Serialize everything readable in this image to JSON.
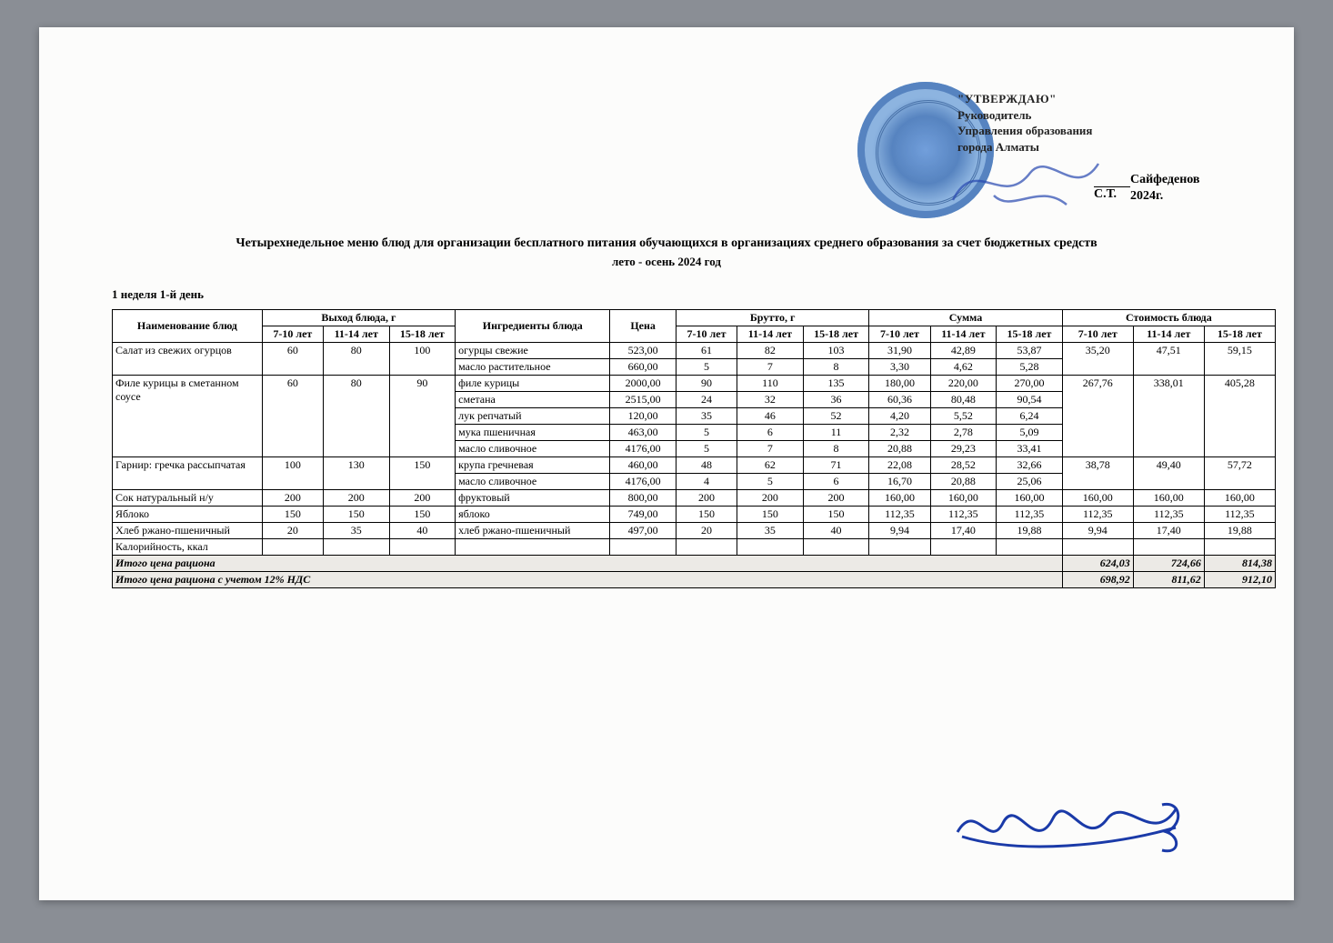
{
  "approval": {
    "line1": "\"УТВЕРЖДАЮ\"",
    "line2": "Руководитель",
    "line3": "Управления образования",
    "line4": "города Алматы",
    "signer": "Сайфеденов С.Т.",
    "year": "2024г."
  },
  "title": "Четырехнедельное меню блюд для организации бесплатного питания обучающихся в организациях среднего образования за счет бюджетных средств",
  "subtitle": "лето - осень 2024 год",
  "weekday": "1 неделя 1-й день",
  "headers": {
    "dish": "Наименование блюд",
    "yield": "Выход блюда, г",
    "ingredients": "Ингредиенты блюда",
    "price": "Цена",
    "gross": "Брутто, г",
    "sum": "Сумма",
    "cost": "Стоимость блюда",
    "a7": "7-10 лет",
    "a11": "11-14 лет",
    "a15": "15-18 лет"
  },
  "rows": [
    {
      "dish": "Салат из свежих огурцов",
      "y": [
        "60",
        "80",
        "100"
      ],
      "span": 2,
      "cost": [
        "35,20",
        "47,51",
        "59,15"
      ],
      "ing": [
        {
          "n": "огурцы свежие",
          "p": "523,00",
          "b": [
            "61",
            "82",
            "103"
          ],
          "s": [
            "31,90",
            "42,89",
            "53,87"
          ]
        },
        {
          "n": "масло растительное",
          "p": "660,00",
          "b": [
            "5",
            "7",
            "8"
          ],
          "s": [
            "3,30",
            "4,62",
            "5,28"
          ]
        }
      ]
    },
    {
      "dish": "Филе курицы в сметанном соусе",
      "y": [
        "60",
        "80",
        "90"
      ],
      "span": 5,
      "cost": [
        "267,76",
        "338,01",
        "405,28"
      ],
      "ing": [
        {
          "n": "филе курицы",
          "p": "2000,00",
          "b": [
            "90",
            "110",
            "135"
          ],
          "s": [
            "180,00",
            "220,00",
            "270,00"
          ]
        },
        {
          "n": "сметана",
          "p": "2515,00",
          "b": [
            "24",
            "32",
            "36"
          ],
          "s": [
            "60,36",
            "80,48",
            "90,54"
          ]
        },
        {
          "n": "лук репчатый",
          "p": "120,00",
          "b": [
            "35",
            "46",
            "52"
          ],
          "s": [
            "4,20",
            "5,52",
            "6,24"
          ]
        },
        {
          "n": "мука пшеничная",
          "p": "463,00",
          "b": [
            "5",
            "6",
            "11"
          ],
          "s": [
            "2,32",
            "2,78",
            "5,09"
          ]
        },
        {
          "n": "масло сливочное",
          "p": "4176,00",
          "b": [
            "5",
            "7",
            "8"
          ],
          "s": [
            "20,88",
            "29,23",
            "33,41"
          ]
        }
      ]
    },
    {
      "dish": "Гарнир: гречка рассыпчатая",
      "y": [
        "100",
        "130",
        "150"
      ],
      "span": 2,
      "cost": [
        "38,78",
        "49,40",
        "57,72"
      ],
      "ing": [
        {
          "n": "крупа гречневая",
          "p": "460,00",
          "b": [
            "48",
            "62",
            "71"
          ],
          "s": [
            "22,08",
            "28,52",
            "32,66"
          ]
        },
        {
          "n": "масло сливочное",
          "p": "4176,00",
          "b": [
            "4",
            "5",
            "6"
          ],
          "s": [
            "16,70",
            "20,88",
            "25,06"
          ]
        }
      ]
    },
    {
      "dish": "Сок натуральный н/у",
      "y": [
        "200",
        "200",
        "200"
      ],
      "span": 1,
      "cost": [
        "160,00",
        "160,00",
        "160,00"
      ],
      "ing": [
        {
          "n": "фруктовый",
          "p": "800,00",
          "b": [
            "200",
            "200",
            "200"
          ],
          "s": [
            "160,00",
            "160,00",
            "160,00"
          ]
        }
      ]
    },
    {
      "dish": "Яблоко",
      "y": [
        "150",
        "150",
        "150"
      ],
      "span": 1,
      "cost": [
        "112,35",
        "112,35",
        "112,35"
      ],
      "ing": [
        {
          "n": "яблоко",
          "p": "749,00",
          "b": [
            "150",
            "150",
            "150"
          ],
          "s": [
            "112,35",
            "112,35",
            "112,35"
          ]
        }
      ]
    },
    {
      "dish": "Хлеб ржано-пшеничный",
      "y": [
        "20",
        "35",
        "40"
      ],
      "span": 1,
      "cost": [
        "9,94",
        "17,40",
        "19,88"
      ],
      "ing": [
        {
          "n": "хлеб ржано-пшеничный",
          "p": "497,00",
          "b": [
            "20",
            "35",
            "40"
          ],
          "s": [
            "9,94",
            "17,40",
            "19,88"
          ]
        }
      ]
    }
  ],
  "kcal_label": "Калорийность, ккал",
  "totals": {
    "label1": "Итого цена рациона",
    "v1": [
      "624,03",
      "724,66",
      "814,38"
    ],
    "label2": "Итого цена рациона с учетом 12% НДС",
    "v2": [
      "698,92",
      "811,62",
      "912,10"
    ]
  }
}
